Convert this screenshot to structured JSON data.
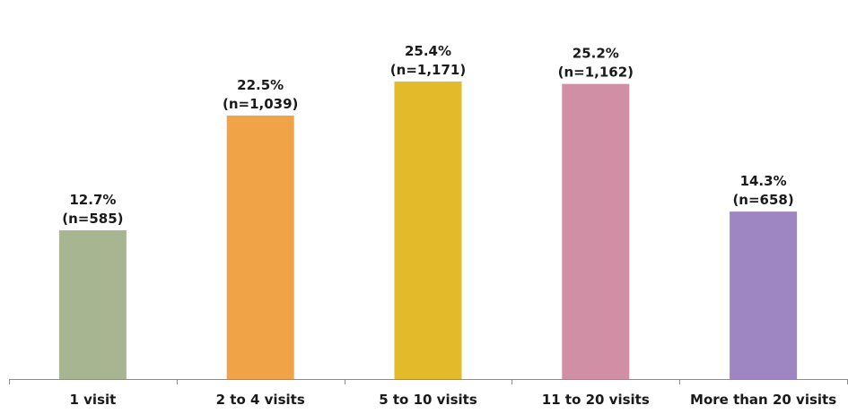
{
  "chart_data": {
    "type": "bar",
    "title": "",
    "xlabel": "",
    "ylabel": "",
    "ylim": [
      0,
      29
    ],
    "grid": false,
    "legend": "none",
    "categories": [
      "1 visit",
      "2 to 4 visits",
      "5 to 10 visits",
      "11 to 20 visits",
      "More than 20 visits"
    ],
    "values": [
      12.7,
      22.5,
      25.4,
      25.2,
      14.3
    ],
    "value_labels": [
      "12.7%",
      "22.5%",
      "25.4%",
      "25.2%",
      "14.3%"
    ],
    "n_labels": [
      "(n=585)",
      "(n=1,039)",
      "(n=1,171)",
      "(n=1,162)",
      "(n=658)"
    ],
    "colors": [
      "#a7b590",
      "#f0a347",
      "#e3ba2a",
      "#d08fa4",
      "#9d86c1"
    ]
  },
  "colors": {
    "axis": "#8c8c8c",
    "text": "#1a1a1a"
  }
}
